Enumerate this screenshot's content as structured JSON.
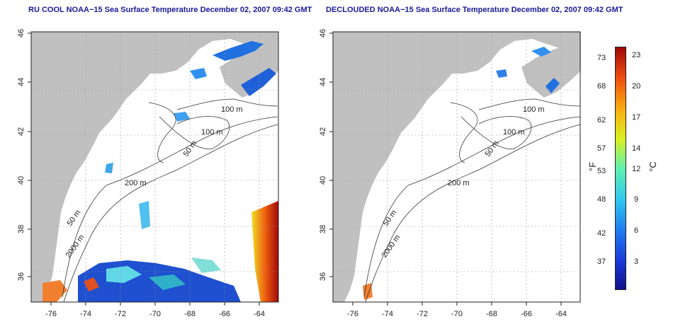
{
  "left_panel": {
    "title": "RU COOL NOAA−15 Sea Surface Temperature December 02, 2007 09:42 GMT",
    "x_ticks": [
      "-76",
      "-74",
      "-72",
      "-70",
      "-68",
      "-66",
      "-64"
    ],
    "y_ticks": [
      "36",
      "38",
      "40",
      "42",
      "44",
      "46"
    ],
    "contour_labels": [
      "100 m",
      "100 m",
      "50 m",
      "200 m",
      "50 m",
      "2000 m"
    ]
  },
  "right_panel": {
    "title": "DECLOUDED NOAA−15 Sea Surface Temperature December 02, 2007 09:42 GMT",
    "x_ticks": [
      "-76",
      "-74",
      "-72",
      "-70",
      "-68",
      "-66",
      "-64"
    ],
    "y_ticks": [
      "36",
      "38",
      "40",
      "42",
      "44",
      "46"
    ],
    "contour_labels": [
      "100 m",
      "100 m",
      "50 m",
      "200 m",
      "50 m",
      "2000 m"
    ]
  },
  "colorbar": {
    "fahrenheit_ticks": [
      "73",
      "68",
      "62",
      "57",
      "53",
      "48",
      "42",
      "37"
    ],
    "celsius_ticks": [
      "23",
      "20",
      "17",
      "14",
      "12",
      "9",
      "6",
      "3"
    ],
    "fahrenheit_unit": "°F",
    "celsius_unit": "°C"
  },
  "colors": {
    "land": "#c0c0c0",
    "water": "#ffffff",
    "title": "#1a1a9a",
    "colormap": [
      "#10108a",
      "#1a3ad8",
      "#2080f0",
      "#30c8f0",
      "#60f0b0",
      "#d8f020",
      "#f8b010",
      "#f05010",
      "#a00808"
    ]
  }
}
